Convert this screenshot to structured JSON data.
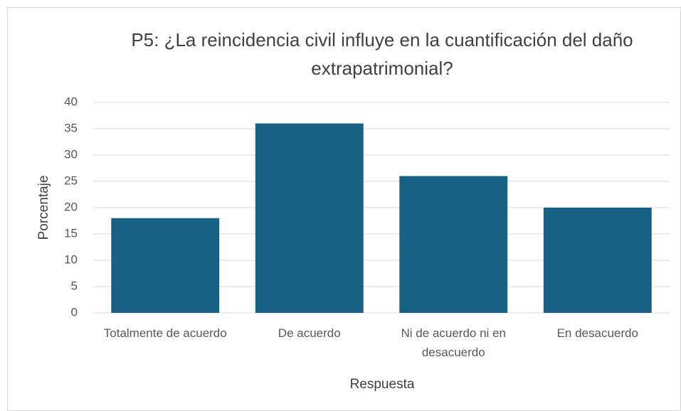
{
  "chart_data": {
    "type": "bar",
    "title": "P5: ¿La reincidencia civil influye en la cuantificación del daño extrapatrimonial?",
    "x_label": "Respuesta",
    "y_label": "Porcentaje",
    "categories": [
      "Totalmente de acuerdo",
      "De acuerdo",
      "Ni de acuerdo ni en desacuerdo",
      "En desacuerdo"
    ],
    "values": [
      18,
      36,
      26,
      20
    ],
    "color": "#176184",
    "ylim": [
      0,
      40
    ],
    "yticks": [
      0,
      5,
      10,
      15,
      20,
      25,
      30,
      35,
      40
    ],
    "grid": true
  }
}
